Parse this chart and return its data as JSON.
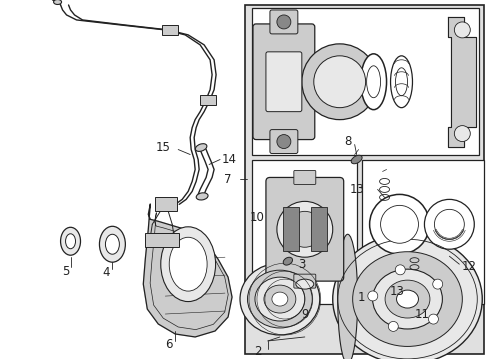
{
  "white": "#ffffff",
  "black": "#222222",
  "light_gray": "#e8e8e8",
  "mid_gray": "#cccccc",
  "dark_gray": "#888888",
  "box_bg": "#e0e0e0"
}
